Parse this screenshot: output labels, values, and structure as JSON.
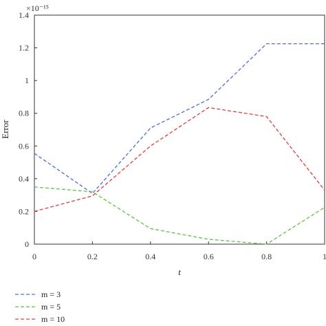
{
  "chart_data": {
    "type": "line",
    "xlabel": "t",
    "ylabel": "Error",
    "y_multiplier": "×10⁻¹⁵",
    "x": [
      0,
      0.2,
      0.4,
      0.6,
      0.8,
      1
    ],
    "xlim": [
      0,
      1
    ],
    "ylim": [
      0,
      1.4
    ],
    "xticks": [
      "0",
      "0.2",
      "0.4",
      "0.6",
      "0.8",
      "1"
    ],
    "yticks": [
      "0",
      "0.2",
      "0.4",
      "0.6",
      "0.8",
      "1",
      "1.2",
      "1.4"
    ],
    "grid": false,
    "legend_position": "bottom-left",
    "series": [
      {
        "name": "m = 3",
        "color": "#4a6fd0",
        "values": [
          0.555,
          0.31,
          0.71,
          0.885,
          1.225,
          1.225
        ]
      },
      {
        "name": "m = 5",
        "color": "#5fbf45",
        "values": [
          0.35,
          0.32,
          0.095,
          0.03,
          0.0,
          0.225
        ]
      },
      {
        "name": "m = 10",
        "color": "#e03a3a",
        "values": [
          0.2,
          0.295,
          0.6,
          0.835,
          0.78,
          0.33
        ]
      }
    ]
  }
}
